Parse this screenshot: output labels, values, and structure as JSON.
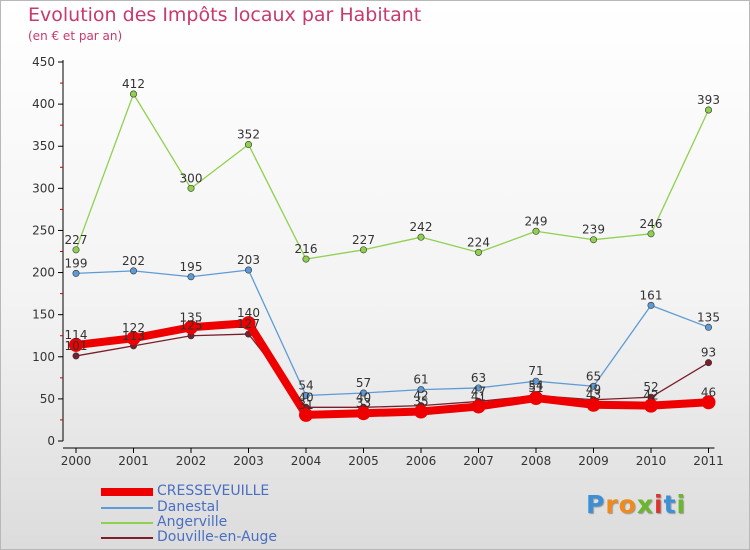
{
  "chart_data": {
    "type": "line",
    "title": "Evolution des Impôts locaux par Habitant",
    "subtitle": "(en € et par an)",
    "x": [
      "2000",
      "2001",
      "2002",
      "2003",
      "2004",
      "2005",
      "2006",
      "2007",
      "2008",
      "2009",
      "2010",
      "2011"
    ],
    "ylim": [
      0,
      450
    ],
    "yticks": [
      "0",
      "50",
      "100",
      "150",
      "200",
      "250",
      "300",
      "350",
      "400",
      "450"
    ],
    "grid": false,
    "series": [
      {
        "name": "Angerville",
        "color": "#8fd14f",
        "values": [
          227,
          412,
          300,
          352,
          216,
          227,
          242,
          224,
          249,
          239,
          246,
          393
        ],
        "labels": [
          "227",
          "412",
          "300",
          "352",
          "216",
          "227",
          "242",
          "224",
          "249",
          "239",
          "246",
          "393"
        ]
      },
      {
        "name": "Danestal",
        "color": "#5e9bd6",
        "values": [
          199,
          202,
          195,
          203,
          54,
          57,
          61,
          63,
          71,
          65,
          161,
          135
        ],
        "labels": [
          "199",
          "202",
          "195",
          "203",
          "54",
          "57",
          "61",
          "63",
          "71",
          "65",
          "161",
          "135"
        ]
      },
      {
        "name": "Douville-en-Auge",
        "color": "#7a1f2b",
        "values": [
          101,
          113,
          125,
          127,
          40,
          40,
          42,
          47,
          54,
          49,
          52,
          93
        ],
        "labels": [
          "101",
          "113",
          "125",
          "127",
          "40",
          "40",
          "42",
          "47",
          "54",
          "49",
          "52",
          "93"
        ]
      },
      {
        "name": "CRESSEVEUILLE",
        "color": "#ee0000",
        "values": [
          114,
          122,
          135,
          140,
          31,
          33,
          35,
          41,
          51,
          43,
          42,
          46
        ],
        "labels": [
          "114",
          "122",
          "135",
          "140",
          "31",
          "33",
          "35",
          "41",
          "51",
          "43",
          "42",
          "46"
        ]
      }
    ],
    "legend": [
      {
        "name": "CRESSEVEUILLE",
        "color": "#ee0000"
      },
      {
        "name": "Danestal",
        "color": "#5e9bd6"
      },
      {
        "name": "Angerville",
        "color": "#8fd14f"
      },
      {
        "name": "Douville-en-Auge",
        "color": "#7a1f2b"
      }
    ]
  },
  "logo": {
    "text": "Proxiti"
  }
}
